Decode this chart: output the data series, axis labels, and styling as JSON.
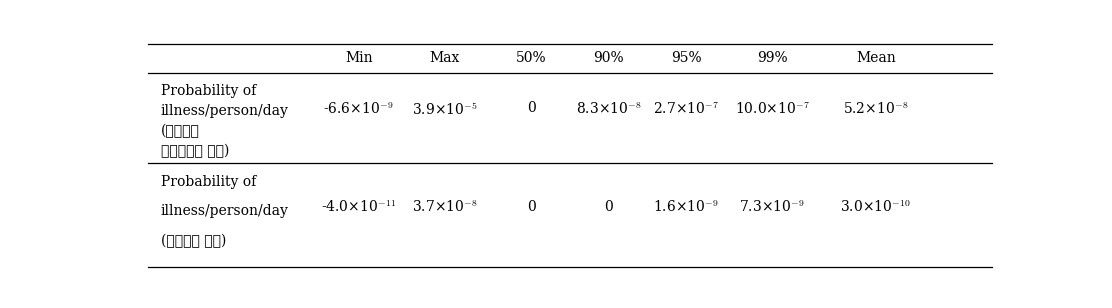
{
  "columns": [
    "",
    "Min",
    "Max",
    "50%",
    "90%",
    "95%",
    "99%",
    "Mean"
  ],
  "row1_label_lines": [
    "Probability of",
    "illness/person/day",
    "십취량과",
    "십취빈도만 고려)"
  ],
  "row1_label_lines_display": [
    "Probability of",
    "illness/person/day",
    "(십취량과",
    "십취빈도만 고려)"
  ],
  "row1_data": [
    "-6.6×10$^{-9}$",
    "3.9×10$^{-5}$",
    "0",
    "8.3×10$^{-8}$",
    "2.7×10$^{-7}$",
    "10.0×10$^{-7}$",
    "5.2×10$^{-8}$"
  ],
  "row2_label_lines_display": [
    "Probability of",
    "illness/person/day",
    "(조리방법 고려)"
  ],
  "row2_data": [
    "-4.0×10$^{-11}$",
    "3.7×10$^{-8}$",
    "0",
    "0",
    "1.6×10$^{-9}$",
    "7.3×10$^{-9}$",
    "3.0×10$^{-10}$"
  ],
  "background_color": "#ffffff",
  "text_color": "#000000",
  "font_size": 10.0
}
